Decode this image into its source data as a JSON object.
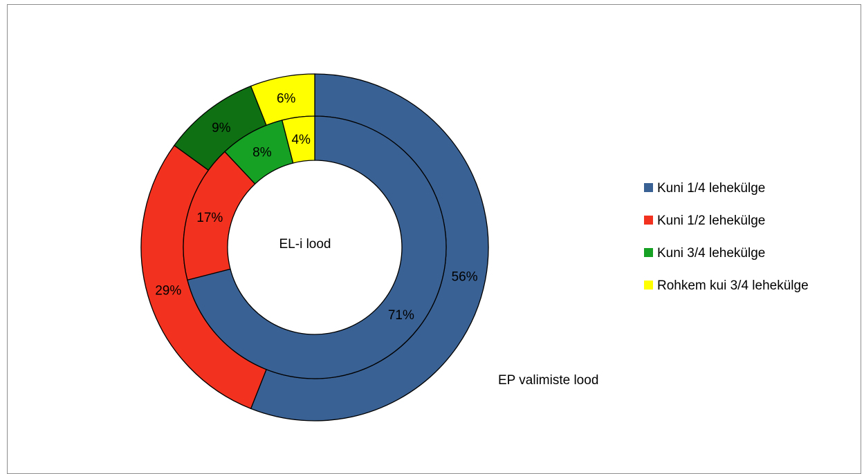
{
  "chart_data": {
    "type": "donut",
    "categories": [
      "Kuni 1/4 lehekülge",
      "Kuni 1/2 lehekülge",
      "Kuni 3/4 lehekülge",
      "Rohkem kui 3/4 lehekülge"
    ],
    "colors": [
      "#3A6193",
      "#F2311F",
      "#0E7012",
      "#FFFF00"
    ],
    "inner_ring_colors": [
      "#3A6193",
      "#F2311F",
      "#16A125",
      "#FFFF00"
    ],
    "series": [
      {
        "name": "EL-i lood",
        "ring": "inner",
        "values": [
          71,
          17,
          8,
          4
        ],
        "labels": [
          "71%",
          "17%",
          "8%",
          "4%"
        ]
      },
      {
        "name": "EP valimiste lood",
        "ring": "outer",
        "values": [
          56,
          29,
          9,
          6
        ],
        "labels": [
          "56%",
          "29%",
          "9%",
          "6%"
        ]
      }
    ],
    "legend_position": "right"
  }
}
